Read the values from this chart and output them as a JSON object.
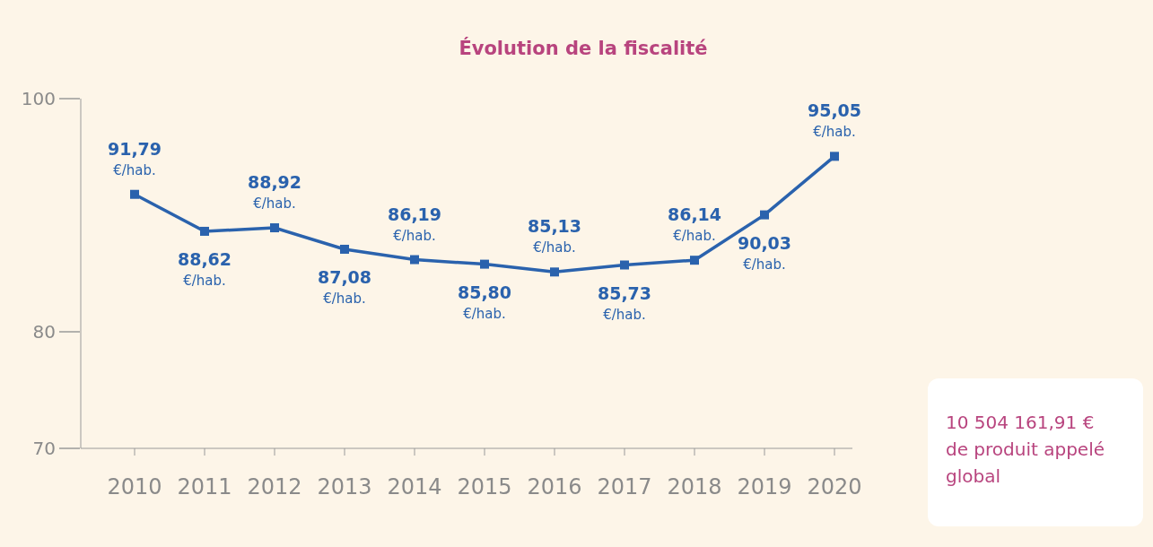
{
  "chart_data": {
    "type": "line",
    "title": "Évolution de la fiscalité",
    "categories": [
      "2010",
      "2011",
      "2012",
      "2013",
      "2014",
      "2015",
      "2016",
      "2017",
      "2018",
      "2019",
      "2020"
    ],
    "series": [
      {
        "color": "#2a62ad",
        "values": [
          91.79,
          88.62,
          88.92,
          87.08,
          86.19,
          85.8,
          85.13,
          85.73,
          86.14,
          90.03,
          95.05
        ],
        "value_labels": [
          "91,79\n€/hab.",
          "88,62\n€/hab.",
          "88,92\n€/hab.",
          "87,08\n€/hab.",
          "86,19\n€/hab.",
          "85,80\n€/hab.",
          "85,13\n€/hab.",
          "85,73\n€/hab.",
          "86,14\n€/hab.",
          "90,03\n€/hab.",
          "95,05\n€/hab."
        ]
      }
    ],
    "ylim": [
      70,
      100
    ],
    "yticks": [
      70,
      80,
      100
    ],
    "marker": "square",
    "line_style": "solid",
    "grid": false,
    "legend": false,
    "annotations": [
      "10 504 161,91 €\nde produit appelé\nglobal"
    ]
  }
}
